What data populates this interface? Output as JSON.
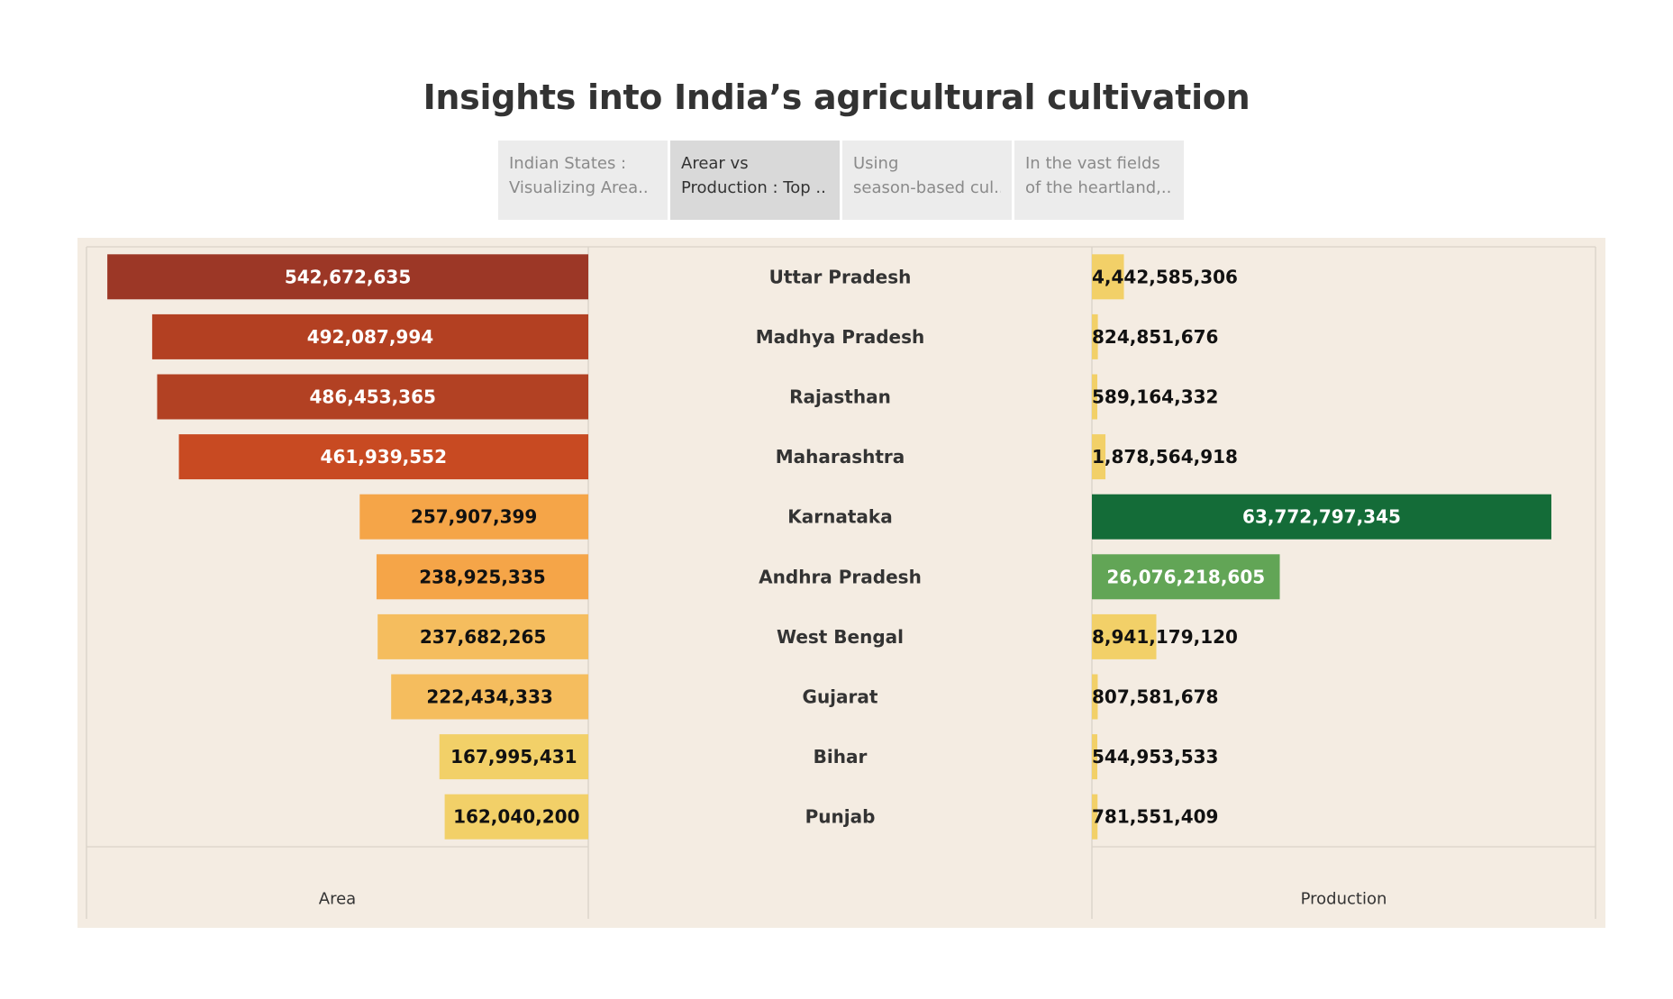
{
  "title": "Insights into India’s agricultural cultivation",
  "story_tabs": [
    {
      "line1": "Indian States :",
      "line2": "Visualizing Area..",
      "active": false
    },
    {
      "line1": "Arear vs",
      "line2": "Production : Top ..",
      "active": true
    },
    {
      "line1": "Using",
      "line2": "season-based cul..",
      "active": false
    },
    {
      "line1": "In the vast fields",
      "line2": "of the heartland,..",
      "active": false
    }
  ],
  "chart_data": {
    "type": "bar",
    "categories": [
      "Uttar Pradesh",
      "Madhya Pradesh",
      "Rajasthan",
      "Maharashtra",
      "Karnataka",
      "Andhra Pradesh",
      "West Bengal",
      "Gujarat",
      "Bihar",
      "Punjab"
    ],
    "series": [
      {
        "name": "Area",
        "values": [
          542672635,
          492087994,
          486453365,
          461939552,
          257907399,
          238925335,
          237682265,
          222434333,
          167995431,
          162040200
        ],
        "labels": [
          "542,672,635",
          "492,087,994",
          "486,453,365",
          "461,939,552",
          "257,907,399",
          "238,925,335",
          "237,682,265",
          "222,434,333",
          "167,995,431",
          "162,040,200"
        ],
        "colors": [
          "#9c3726",
          "#b34022",
          "#b24123",
          "#c84a22",
          "#f5a548",
          "#f5a548",
          "#f5bd5e",
          "#f5bd5e",
          "#f2d068",
          "#f2d068"
        ],
        "label_colors": [
          "#ffffff",
          "#ffffff",
          "#ffffff",
          "#ffffff",
          "#111111",
          "#111111",
          "#111111",
          "#111111",
          "#111111",
          "#111111"
        ]
      },
      {
        "name": "Production",
        "values": [
          4442585306,
          824851676,
          589164332,
          1878564918,
          63772797345,
          26076218605,
          8941179120,
          807581678,
          544953533,
          781551409
        ],
        "labels": [
          "4,442,585,306",
          "824,851,676",
          "589,164,332",
          "1,878,564,918",
          "63,772,797,345",
          "26,076,218,605",
          "8,941,179,120",
          "807,581,678",
          "544,953,533",
          "781,551,409"
        ],
        "colors": [
          "#f2d068",
          "#f2d068",
          "#f2d068",
          "#f2d068",
          "#146c38",
          "#62a556",
          "#f2d068",
          "#f2d068",
          "#f2d068",
          "#f2d068"
        ],
        "label_colors": [
          "#111111",
          "#111111",
          "#111111",
          "#111111",
          "#ffffff",
          "#ffffff",
          "#111111",
          "#111111",
          "#111111",
          "#111111"
        ]
      }
    ],
    "xlabel_left": "Area",
    "xlabel_right": "Production",
    "grid": false,
    "legend": "none"
  }
}
